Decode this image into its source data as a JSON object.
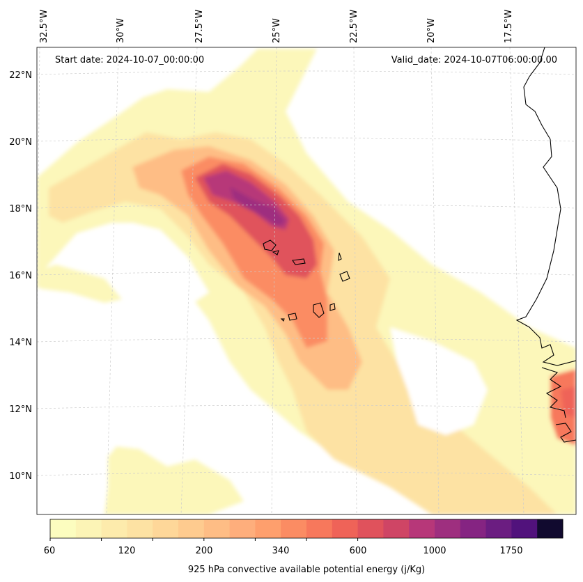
{
  "map": {
    "start_date": "Start date: 2024-10-07_00:00:00",
    "valid_date": "Valid_date: 2024-10-07T06:00:00.00",
    "lon_labels": [
      "32.5°W",
      "30°W",
      "27.5°W",
      "25°W",
      "22.5°W",
      "20°W",
      "17.5°W"
    ],
    "lat_labels": [
      "22°N",
      "20°N",
      "18°N",
      "16°N",
      "14°N",
      "12°N",
      "10°N"
    ]
  },
  "colorbar": {
    "label": "925 hPa convective available potential energy (j/Kg)",
    "ticks": [
      "60",
      "120",
      "200",
      "340",
      "600",
      "1000",
      "1750"
    ],
    "colors": [
      "#fcfdbf",
      "#fcf4b6",
      "#fdebac",
      "#fde2a3",
      "#fed799",
      "#fecb8f",
      "#febd85",
      "#feae7c",
      "#fe9f6d",
      "#fb8c63",
      "#f7785c",
      "#ef6358",
      "#e0525c",
      "#cf4565",
      "#b73779",
      "#9e2f7f",
      "#852482",
      "#6b1d81",
      "#51127c",
      "#110a2f"
    ]
  }
}
